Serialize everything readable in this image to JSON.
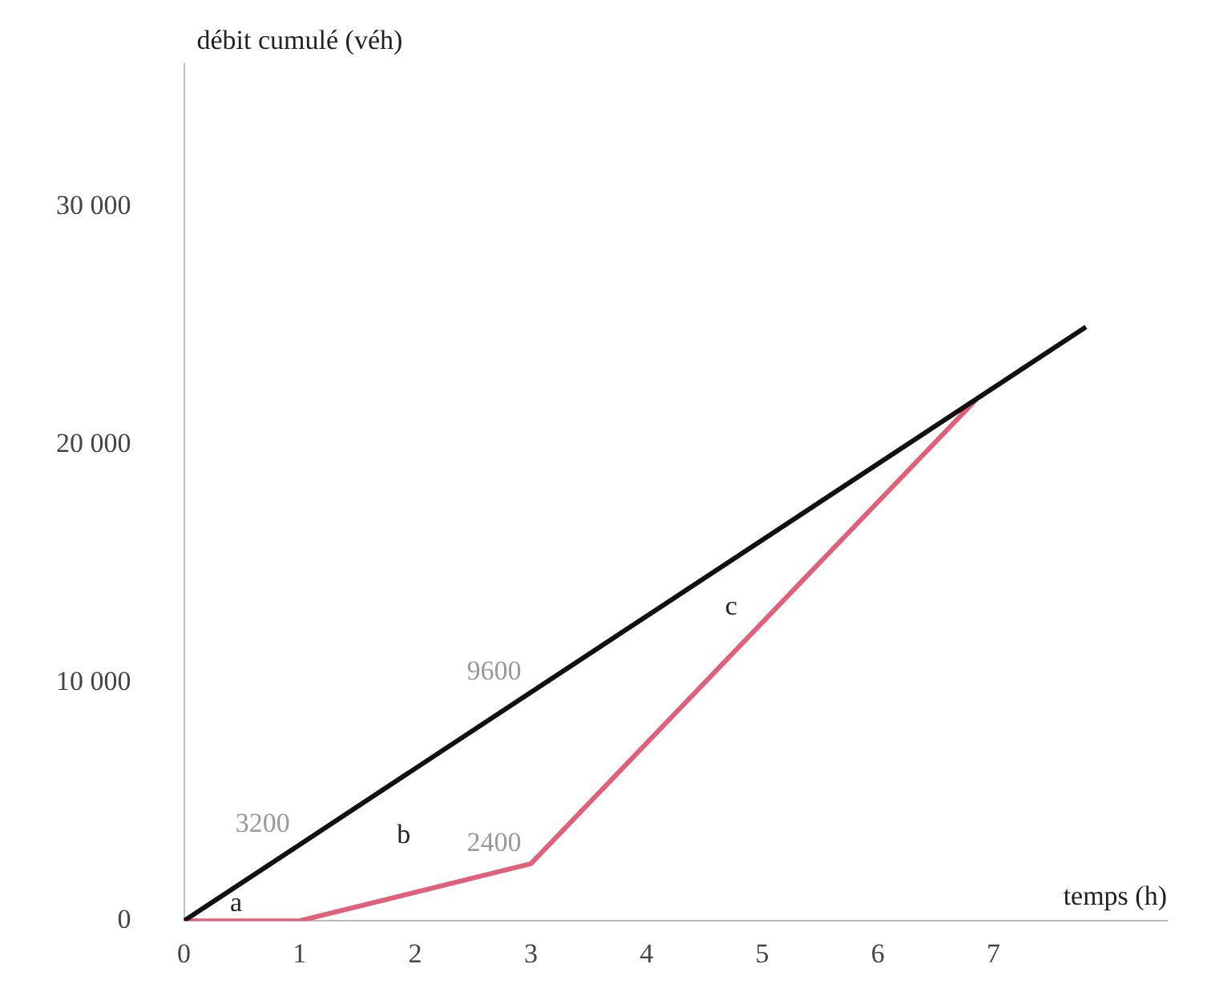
{
  "chart_data": {
    "type": "line",
    "xlabel": "temps (h)",
    "ylabel": "débit cumulé (véh)",
    "series": [
      {
        "color": "#111111",
        "x": [
          0,
          1,
          3,
          7.8
        ],
        "values": [
          0,
          3200,
          9600,
          24960
        ],
        "value_labels": [
          null,
          "3200",
          "9600",
          null
        ]
      },
      {
        "color": "#e0607a",
        "x": [
          0,
          1,
          3,
          6.85
        ],
        "values": [
          0,
          0,
          2400,
          21900
        ],
        "value_labels": [
          null,
          null,
          "2400",
          null
        ]
      }
    ],
    "xlim": [
      0,
      8.5
    ],
    "ylim": [
      0,
      36000
    ],
    "xticks": [
      0,
      1,
      2,
      3,
      4,
      5,
      6,
      7
    ],
    "yticks": [
      {
        "value": 0,
        "label": "0"
      },
      {
        "value": 10000,
        "label": "10 000"
      },
      {
        "value": 20000,
        "label": "20 000"
      },
      {
        "value": 30000,
        "label": "30 000"
      }
    ],
    "annotations": [
      "a",
      "b",
      "c"
    ],
    "grid": false,
    "legend": false,
    "marker": "none",
    "line_style": "solid"
  }
}
